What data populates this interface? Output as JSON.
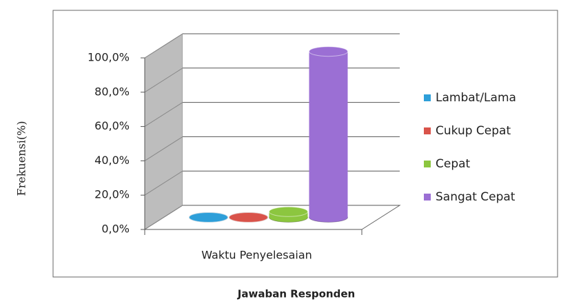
{
  "chart_data": {
    "type": "bar3d",
    "y_axis_label": "Frekuensi(%)",
    "x_axis_label": "Jawaban Responden",
    "categories": [
      "Waktu Penyelesaian"
    ],
    "series": [
      {
        "name": "Lambat/Lama",
        "color": "#2e9fd9",
        "values": [
          0
        ]
      },
      {
        "name": "Cukup Cepat",
        "color": "#d9534a",
        "values": [
          0
        ]
      },
      {
        "name": "Cepat",
        "color": "#8cc63f",
        "values": [
          3.3
        ]
      },
      {
        "name": "Sangat Cepat",
        "color": "#9b6fd4",
        "values": [
          96.7
        ]
      }
    ],
    "ylim": [
      0,
      100
    ],
    "yticks": [
      {
        "value": 0,
        "label": "0,0%"
      },
      {
        "value": 20,
        "label": "20,0%"
      },
      {
        "value": 40,
        "label": "40,0%"
      },
      {
        "value": 60,
        "label": "60,0%"
      },
      {
        "value": 80,
        "label": "80,0%"
      },
      {
        "value": 100,
        "label": "100,0%"
      }
    ],
    "grid": true,
    "legend": "right"
  }
}
